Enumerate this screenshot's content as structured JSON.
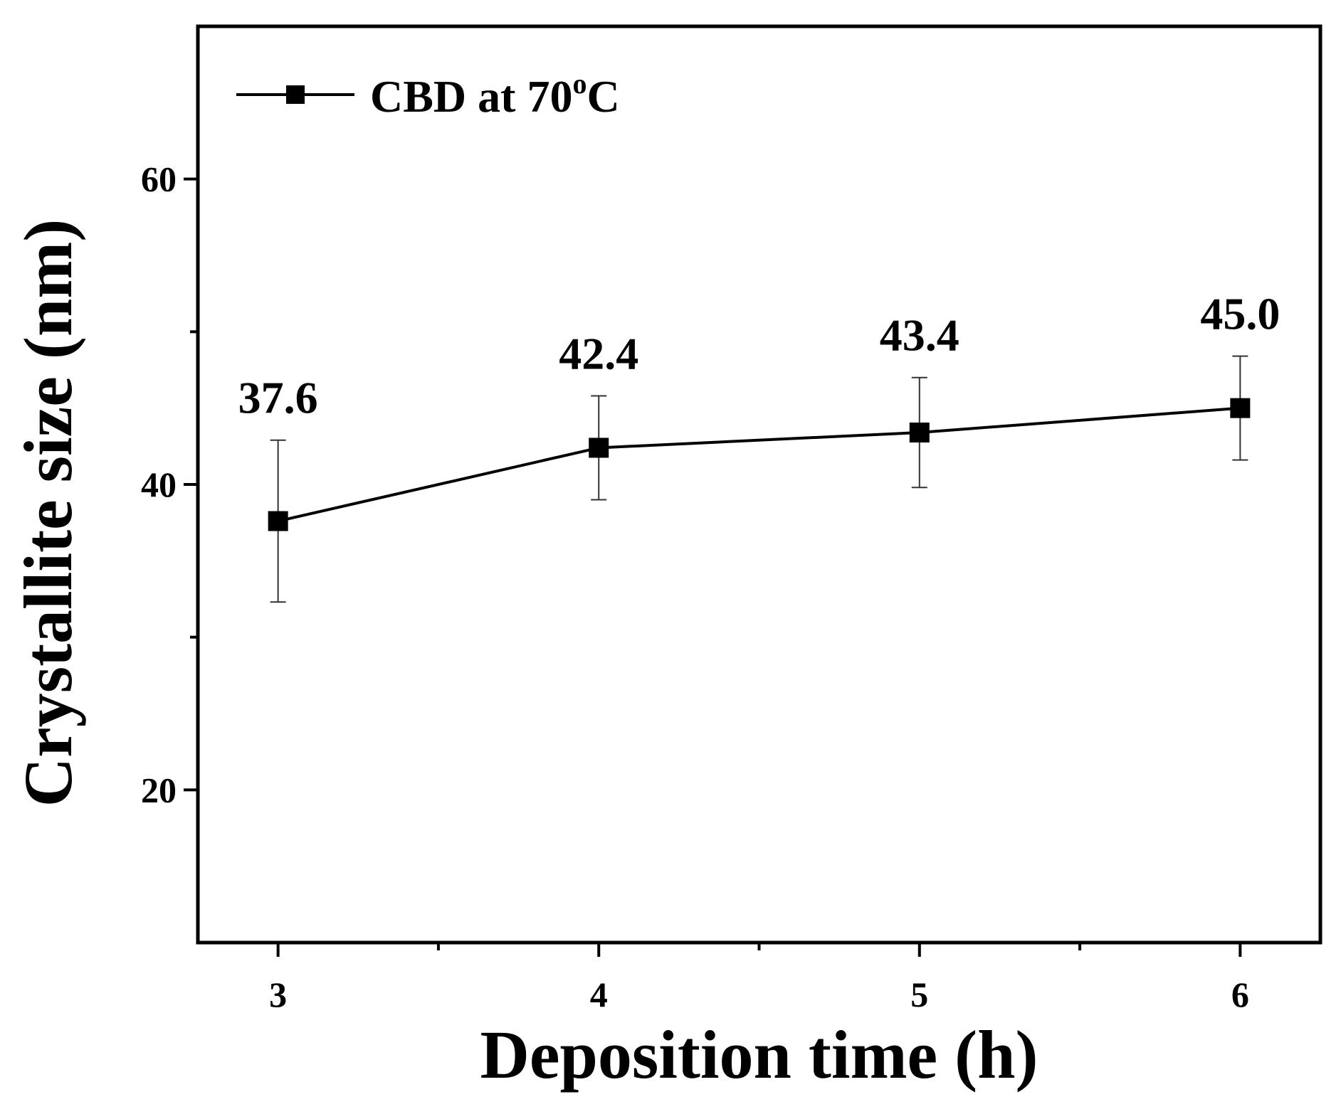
{
  "chart_data": {
    "type": "line",
    "x": [
      3,
      4,
      5,
      6
    ],
    "series": [
      {
        "name": "CBD at 70°C",
        "values": [
          37.6,
          42.4,
          43.4,
          45.0
        ],
        "error": [
          5.3,
          3.4,
          3.6,
          3.4
        ],
        "data_labels": [
          "37.6",
          "42.4",
          "43.4",
          "45.0"
        ],
        "color": "#000000",
        "marker": "square"
      }
    ],
    "xlabel": "Deposition time (h)",
    "ylabel": "Crystallite size (nm)",
    "xlim": [
      2.75,
      6.25
    ],
    "ylim": [
      10,
      70
    ],
    "xticks": [
      3,
      4,
      5,
      6
    ],
    "xtick_labels": [
      "3",
      "4",
      "5",
      "6"
    ],
    "xminor_ticks": [
      3.5,
      4.5,
      5.5
    ],
    "yticks": [
      20,
      40,
      60
    ],
    "ytick_labels": [
      "20",
      "40",
      "60"
    ],
    "yminor_ticks": [
      30,
      50
    ],
    "legend": {
      "position": "top-left",
      "label_main": "CBD at 70",
      "label_sup": "o",
      "label_end": "C"
    },
    "grid": false
  }
}
